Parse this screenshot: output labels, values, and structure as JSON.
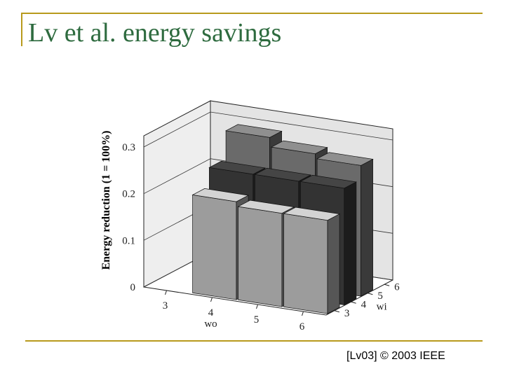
{
  "slide": {
    "title": "Lv et al. energy savings",
    "footer": "[Lv03] © 2003 IEEE",
    "rule_color": "#b89a1c",
    "title_color": "#2e6b3f"
  },
  "chart_data": {
    "type": "bar",
    "subtype": "3d-bar",
    "title": "",
    "ylabel": "Energy reduction (1 = 100%)",
    "xlabel": "wo",
    "zlabel": "wi",
    "ylim": [
      0,
      0.3
    ],
    "yticks": [
      "0",
      "0.1",
      "0.2",
      "0.3"
    ],
    "x_categories": [
      "3",
      "4",
      "5",
      "6"
    ],
    "z_categories": [
      "3",
      "4",
      "5",
      "6"
    ],
    "grid": true,
    "series": [
      {
        "wi": "3",
        "color": "#9c9c9c",
        "points": [
          {
            "wo": "4",
            "value": 0.21
          },
          {
            "wo": "5",
            "value": 0.2
          },
          {
            "wo": "6",
            "value": 0.2
          }
        ]
      },
      {
        "wi": "4",
        "color": "#333333",
        "points": [
          {
            "wo": "4",
            "value": 0.25
          },
          {
            "wo": "5",
            "value": 0.25
          },
          {
            "wo": "6",
            "value": 0.25
          }
        ]
      },
      {
        "wi": "5",
        "color": "#6a6a6a",
        "points": [
          {
            "wo": "4",
            "value": 0.31
          },
          {
            "wo": "5",
            "value": 0.29
          },
          {
            "wo": "6",
            "value": 0.28
          }
        ]
      }
    ]
  }
}
